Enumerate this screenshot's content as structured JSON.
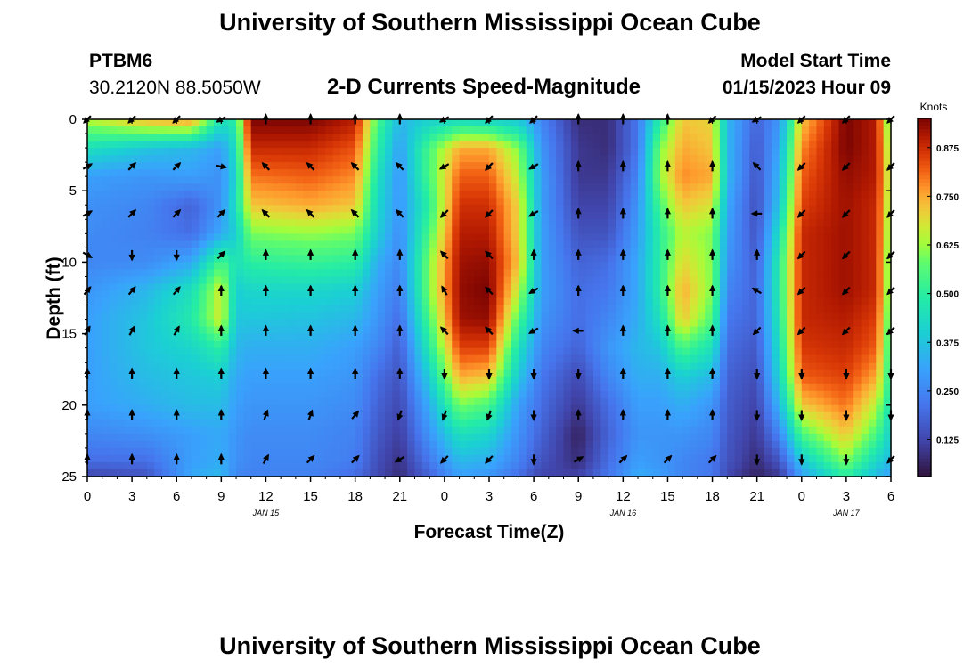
{
  "page": {
    "title": "University of Southern Mississippi Ocean Cube",
    "title_bottom": "University of Southern Mississippi Ocean Cube",
    "station_id": "PTBM6",
    "station_coords": "30.2120N  88.5050W",
    "subtitle": "2-D Currents Speed-Magnitude",
    "model_label": "Model Start Time",
    "model_time": "01/15/2023 Hour 09"
  },
  "chart_data": {
    "type": "heatmap",
    "title": "2-D Currents Speed-Magnitude",
    "xlabel": "Forecast Time(Z)",
    "ylabel": "Depth (ft)",
    "xlim": [
      0,
      54
    ],
    "ylim": [
      25,
      0
    ],
    "x_ticks": [
      0,
      3,
      6,
      9,
      12,
      15,
      18,
      21,
      24,
      27,
      30,
      33,
      36,
      39,
      42,
      45,
      48,
      51,
      54
    ],
    "x_tick_labels": [
      "0",
      "3",
      "6",
      "9",
      "12",
      "15",
      "18",
      "21",
      "0",
      "3",
      "6",
      "9",
      "12",
      "15",
      "18",
      "21",
      "0",
      "3",
      "6"
    ],
    "y_ticks": [
      0,
      5,
      10,
      15,
      20,
      25
    ],
    "y_tick_labels": [
      "0",
      "5",
      "10",
      "15",
      "20",
      "25"
    ],
    "date_labels": [
      {
        "x": 12,
        "label": "JAN 15"
      },
      {
        "x": 36,
        "label": "JAN 16"
      },
      {
        "x": 51,
        "label": "JAN 17"
      }
    ],
    "colorbar": {
      "label": "Knots",
      "range": [
        0.03,
        0.95
      ],
      "ticks": [
        0.125,
        0.25,
        0.375,
        0.5,
        0.625,
        0.75,
        0.875
      ],
      "tick_labels": [
        "0.125",
        "0.250",
        "0.375",
        "0.500",
        "0.625",
        "0.750",
        "0.875"
      ],
      "colormap": "turbo"
    },
    "arrow_depths": [
      0,
      3.3,
      6.6,
      9.5,
      12,
      14.8,
      17.8,
      20.7,
      23.8
    ],
    "arrow_times": [
      0,
      3,
      6,
      9,
      12,
      15,
      18,
      21,
      24,
      27,
      30,
      33,
      36,
      39,
      42,
      45,
      48,
      51,
      54
    ],
    "profiles": [
      {
        "t": 0,
        "d": [
          0,
          2,
          4,
          6,
          8,
          10,
          12,
          14,
          16,
          18,
          20,
          22,
          24,
          25
        ],
        "v": [
          0.65,
          0.45,
          0.3,
          0.27,
          0.26,
          0.25,
          0.28,
          0.3,
          0.3,
          0.3,
          0.3,
          0.25,
          0.2,
          0.12
        ]
      },
      {
        "t": 4,
        "d": [
          0,
          2,
          4,
          6,
          8,
          10,
          12,
          14,
          16,
          18,
          20,
          22,
          24,
          25
        ],
        "v": [
          0.75,
          0.38,
          0.28,
          0.25,
          0.24,
          0.26,
          0.35,
          0.38,
          0.38,
          0.36,
          0.33,
          0.27,
          0.2,
          0.15
        ]
      },
      {
        "t": 7,
        "d": [
          0,
          2,
          4,
          6,
          8,
          10,
          12,
          14,
          16,
          18,
          20,
          22,
          24,
          25
        ],
        "v": [
          0.78,
          0.35,
          0.3,
          0.18,
          0.2,
          0.32,
          0.45,
          0.48,
          0.42,
          0.38,
          0.36,
          0.3,
          0.3,
          0.32
        ]
      },
      {
        "t": 9,
        "d": [
          0,
          2,
          4,
          6,
          8,
          10,
          12,
          14,
          16,
          18,
          20,
          22,
          24,
          25
        ],
        "v": [
          0.45,
          0.3,
          0.27,
          0.28,
          0.32,
          0.55,
          0.68,
          0.68,
          0.5,
          0.4,
          0.36,
          0.32,
          0.33,
          0.35
        ]
      },
      {
        "t": 10,
        "d": [
          0,
          2,
          4,
          6,
          8,
          10,
          12,
          14,
          16,
          18,
          20,
          22,
          24,
          25
        ],
        "v": [
          0.5,
          0.45,
          0.42,
          0.45,
          0.4,
          0.45,
          0.4,
          0.38,
          0.35,
          0.32,
          0.3,
          0.28,
          0.27,
          0.25
        ]
      },
      {
        "t": 11,
        "d": [
          0,
          2,
          4,
          6,
          8,
          10,
          12,
          14,
          16,
          18,
          20,
          22,
          24,
          25
        ],
        "v": [
          0.95,
          0.88,
          0.8,
          0.72,
          0.6,
          0.5,
          0.42,
          0.38,
          0.33,
          0.3,
          0.28,
          0.26,
          0.25,
          0.24
        ]
      },
      {
        "t": 15,
        "d": [
          0,
          2,
          4,
          6,
          8,
          10,
          12,
          14,
          16,
          18,
          20,
          22,
          24,
          25
        ],
        "v": [
          0.95,
          0.88,
          0.82,
          0.75,
          0.62,
          0.52,
          0.42,
          0.37,
          0.33,
          0.3,
          0.28,
          0.26,
          0.25,
          0.24
        ]
      },
      {
        "t": 18,
        "d": [
          0,
          2,
          4,
          6,
          8,
          10,
          12,
          14,
          16,
          18,
          20,
          22,
          24,
          25
        ],
        "v": [
          0.9,
          0.83,
          0.78,
          0.72,
          0.6,
          0.5,
          0.4,
          0.35,
          0.3,
          0.28,
          0.26,
          0.24,
          0.23,
          0.2
        ]
      },
      {
        "t": 19.5,
        "d": [
          0,
          2,
          4,
          6,
          8,
          10,
          12,
          14,
          16,
          18,
          20,
          22,
          24,
          25
        ],
        "v": [
          0.55,
          0.5,
          0.45,
          0.42,
          0.4,
          0.33,
          0.3,
          0.28,
          0.25,
          0.2,
          0.18,
          0.16,
          0.14,
          0.13
        ]
      },
      {
        "t": 21,
        "d": [
          0,
          2,
          4,
          6,
          8,
          10,
          12,
          14,
          16,
          18,
          20,
          22,
          24,
          25
        ],
        "v": [
          0.35,
          0.3,
          0.28,
          0.28,
          0.26,
          0.25,
          0.23,
          0.2,
          0.17,
          0.15,
          0.13,
          0.11,
          0.09,
          0.08
        ]
      },
      {
        "t": 23,
        "d": [
          0,
          2,
          4,
          6,
          8,
          10,
          12,
          14,
          16,
          18,
          20,
          22,
          24,
          25
        ],
        "v": [
          0.4,
          0.55,
          0.55,
          0.5,
          0.55,
          0.6,
          0.6,
          0.55,
          0.48,
          0.4,
          0.33,
          0.28,
          0.22,
          0.18
        ]
      },
      {
        "t": 25,
        "d": [
          0,
          2,
          4,
          6,
          8,
          10,
          12,
          14,
          16,
          18,
          20,
          22,
          24,
          25
        ],
        "v": [
          0.42,
          0.75,
          0.82,
          0.87,
          0.9,
          0.92,
          0.93,
          0.92,
          0.85,
          0.75,
          0.6,
          0.45,
          0.35,
          0.3
        ]
      },
      {
        "t": 27,
        "d": [
          0,
          2,
          4,
          6,
          8,
          10,
          12,
          14,
          16,
          18,
          20,
          22,
          24,
          25
        ],
        "v": [
          0.4,
          0.75,
          0.82,
          0.87,
          0.9,
          0.93,
          0.95,
          0.93,
          0.85,
          0.72,
          0.55,
          0.42,
          0.33,
          0.28
        ]
      },
      {
        "t": 29,
        "d": [
          0,
          2,
          4,
          6,
          8,
          10,
          12,
          14,
          16,
          18,
          20,
          22,
          24,
          25
        ],
        "v": [
          0.38,
          0.6,
          0.65,
          0.7,
          0.7,
          0.72,
          0.65,
          0.55,
          0.45,
          0.38,
          0.3,
          0.27,
          0.24,
          0.2
        ]
      },
      {
        "t": 30.5,
        "d": [
          0,
          2,
          4,
          6,
          8,
          10,
          12,
          14,
          16,
          18,
          20,
          22,
          24,
          25
        ],
        "v": [
          0.25,
          0.28,
          0.3,
          0.3,
          0.3,
          0.3,
          0.3,
          0.28,
          0.25,
          0.22,
          0.2,
          0.18,
          0.15,
          0.12
        ]
      },
      {
        "t": 33,
        "d": [
          0,
          2,
          4,
          6,
          8,
          10,
          12,
          14,
          16,
          18,
          20,
          22,
          24,
          25
        ],
        "v": [
          0.08,
          0.1,
          0.1,
          0.12,
          0.15,
          0.18,
          0.2,
          0.2,
          0.18,
          0.13,
          0.1,
          0.06,
          0.08,
          0.12
        ]
      },
      {
        "t": 35,
        "d": [
          0,
          2,
          4,
          6,
          8,
          10,
          12,
          14,
          16,
          18,
          20,
          22,
          24,
          25
        ],
        "v": [
          0.08,
          0.08,
          0.1,
          0.12,
          0.15,
          0.2,
          0.22,
          0.25,
          0.28,
          0.25,
          0.2,
          0.18,
          0.2,
          0.22
        ]
      },
      {
        "t": 37,
        "d": [
          0,
          2,
          4,
          6,
          8,
          10,
          12,
          14,
          16,
          18,
          20,
          22,
          24,
          25
        ],
        "v": [
          0.22,
          0.22,
          0.25,
          0.28,
          0.3,
          0.32,
          0.32,
          0.33,
          0.35,
          0.33,
          0.3,
          0.28,
          0.3,
          0.33
        ]
      },
      {
        "t": 38.5,
        "d": [
          0,
          2,
          4,
          6,
          8,
          10,
          12,
          14,
          16,
          18,
          20,
          22,
          24,
          25
        ],
        "v": [
          0.5,
          0.6,
          0.62,
          0.55,
          0.5,
          0.5,
          0.5,
          0.45,
          0.38,
          0.33,
          0.3,
          0.28,
          0.28,
          0.3
        ]
      },
      {
        "t": 40,
        "d": [
          0,
          2,
          4,
          6,
          8,
          10,
          12,
          14,
          16,
          18,
          20,
          22,
          24,
          25
        ],
        "v": [
          0.72,
          0.75,
          0.78,
          0.72,
          0.65,
          0.7,
          0.75,
          0.72,
          0.55,
          0.4,
          0.33,
          0.28,
          0.25,
          0.25
        ]
      },
      {
        "t": 42,
        "d": [
          0,
          2,
          4,
          6,
          8,
          10,
          12,
          14,
          16,
          18,
          20,
          22,
          24,
          25
        ],
        "v": [
          0.7,
          0.72,
          0.75,
          0.68,
          0.6,
          0.6,
          0.6,
          0.55,
          0.45,
          0.35,
          0.28,
          0.25,
          0.22,
          0.22
        ]
      },
      {
        "t": 43,
        "d": [
          0,
          2,
          4,
          6,
          8,
          10,
          12,
          14,
          16,
          18,
          20,
          22,
          24,
          25
        ],
        "v": [
          0.35,
          0.35,
          0.35,
          0.32,
          0.3,
          0.28,
          0.25,
          0.22,
          0.2,
          0.18,
          0.17,
          0.16,
          0.15,
          0.13
        ]
      },
      {
        "t": 45,
        "d": [
          0,
          2,
          4,
          6,
          8,
          10,
          12,
          14,
          16,
          18,
          20,
          22,
          24,
          25
        ],
        "v": [
          0.18,
          0.16,
          0.15,
          0.14,
          0.15,
          0.17,
          0.18,
          0.18,
          0.16,
          0.14,
          0.12,
          0.1,
          0.08,
          0.06
        ]
      },
      {
        "t": 46.5,
        "d": [
          0,
          2,
          4,
          6,
          8,
          10,
          12,
          14,
          16,
          18,
          20,
          22,
          24,
          25
        ],
        "v": [
          0.28,
          0.32,
          0.35,
          0.38,
          0.45,
          0.5,
          0.5,
          0.48,
          0.45,
          0.42,
          0.35,
          0.25,
          0.15,
          0.1
        ]
      },
      {
        "t": 48,
        "d": [
          0,
          2,
          4,
          6,
          8,
          10,
          12,
          14,
          16,
          18,
          20,
          22,
          24,
          25
        ],
        "v": [
          0.72,
          0.78,
          0.82,
          0.85,
          0.88,
          0.88,
          0.88,
          0.88,
          0.86,
          0.82,
          0.72,
          0.55,
          0.38,
          0.3
        ]
      },
      {
        "t": 51,
        "d": [
          0,
          2,
          4,
          6,
          8,
          10,
          12,
          14,
          16,
          18,
          20,
          22,
          24,
          25
        ],
        "v": [
          0.95,
          0.95,
          0.93,
          0.92,
          0.92,
          0.92,
          0.92,
          0.9,
          0.88,
          0.85,
          0.8,
          0.72,
          0.6,
          0.5
        ]
      },
      {
        "t": 53,
        "d": [
          0,
          2,
          4,
          6,
          8,
          10,
          12,
          14,
          16,
          18,
          20,
          22,
          24,
          25
        ],
        "v": [
          0.9,
          0.9,
          0.9,
          0.88,
          0.88,
          0.88,
          0.88,
          0.85,
          0.82,
          0.75,
          0.65,
          0.55,
          0.42,
          0.35
        ]
      },
      {
        "t": 54,
        "d": [
          0,
          2,
          4,
          6,
          8,
          10,
          12,
          14,
          16,
          18,
          20,
          22,
          24,
          25
        ],
        "v": [
          0.55,
          0.6,
          0.62,
          0.6,
          0.58,
          0.55,
          0.55,
          0.52,
          0.5,
          0.48,
          0.45,
          0.4,
          0.35,
          0.3
        ]
      }
    ],
    "arrow_dirs": [
      [
        225,
        225,
        225,
        240,
        0,
        0,
        0,
        0,
        240,
        225,
        225,
        0,
        0,
        0,
        225,
        240,
        225,
        225,
        225
      ],
      [
        60,
        45,
        45,
        100,
        315,
        315,
        315,
        315,
        240,
        225,
        240,
        0,
        0,
        0,
        0,
        315,
        225,
        225,
        225
      ],
      [
        60,
        45,
        45,
        45,
        315,
        315,
        315,
        315,
        225,
        225,
        240,
        0,
        0,
        0,
        0,
        270,
        225,
        225,
        225
      ],
      [
        120,
        180,
        180,
        45,
        0,
        0,
        0,
        0,
        315,
        315,
        0,
        0,
        0,
        0,
        0,
        0,
        225,
        225,
        225
      ],
      [
        40,
        40,
        40,
        0,
        0,
        0,
        0,
        0,
        330,
        315,
        240,
        0,
        0,
        0,
        0,
        300,
        225,
        225,
        225
      ],
      [
        30,
        30,
        30,
        0,
        0,
        0,
        0,
        0,
        315,
        315,
        240,
        270,
        0,
        0,
        0,
        225,
        225,
        225,
        225
      ],
      [
        0,
        0,
        0,
        0,
        0,
        0,
        0,
        0,
        180,
        180,
        180,
        180,
        0,
        0,
        0,
        180,
        180,
        180,
        180
      ],
      [
        0,
        0,
        0,
        0,
        20,
        20,
        40,
        200,
        200,
        200,
        180,
        0,
        0,
        0,
        0,
        180,
        180,
        180,
        180
      ],
      [
        0,
        0,
        0,
        0,
        30,
        45,
        45,
        240,
        225,
        225,
        180,
        60,
        45,
        45,
        45,
        180,
        180,
        180,
        225
      ]
    ]
  }
}
